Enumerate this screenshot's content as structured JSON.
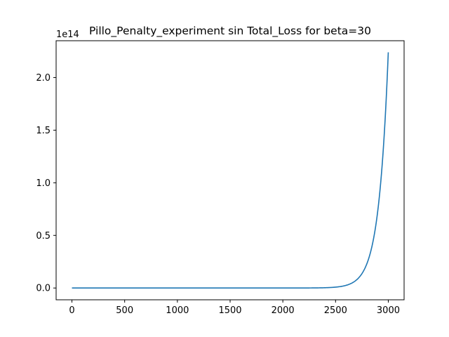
{
  "chart_data": {
    "type": "line",
    "title": "Pillo_Penalty_experiment sin Total_Loss for beta=30",
    "xlabel": "",
    "ylabel": "",
    "y_offset_label": "1e14",
    "xlim": [
      -150,
      3150
    ],
    "ylim": [
      -0.112,
      2.35
    ],
    "x_ticks": [
      0,
      500,
      1000,
      1500,
      2000,
      2500,
      3000
    ],
    "x_tick_labels": [
      "0",
      "500",
      "1000",
      "1500",
      "2000",
      "2500",
      "3000"
    ],
    "y_ticks": [
      0.0,
      0.5,
      1.0,
      1.5,
      2.0
    ],
    "y_tick_labels": [
      "0.0",
      "0.5",
      "1.0",
      "1.5",
      "2.0"
    ],
    "grid": false,
    "series": [
      {
        "color": "#1f77b4",
        "x": [
          0,
          500,
          1000,
          1500,
          2000,
          2200,
          2300,
          2400,
          2450,
          2500,
          2550,
          2600,
          2650,
          2700,
          2750,
          2800,
          2825,
          2850,
          2875,
          2900,
          2925,
          2950,
          2975,
          3000
        ],
        "y": [
          0.0,
          0.0,
          0.0,
          0.0,
          0.0,
          0.0007,
          0.0016,
          0.0037,
          0.0055,
          0.0083,
          0.0126,
          0.0191,
          0.029,
          0.044,
          0.0668,
          0.1015,
          0.125,
          0.154,
          0.1897,
          0.2337,
          0.2879,
          0.3547,
          0.437,
          2.24
        ]
      }
    ]
  }
}
